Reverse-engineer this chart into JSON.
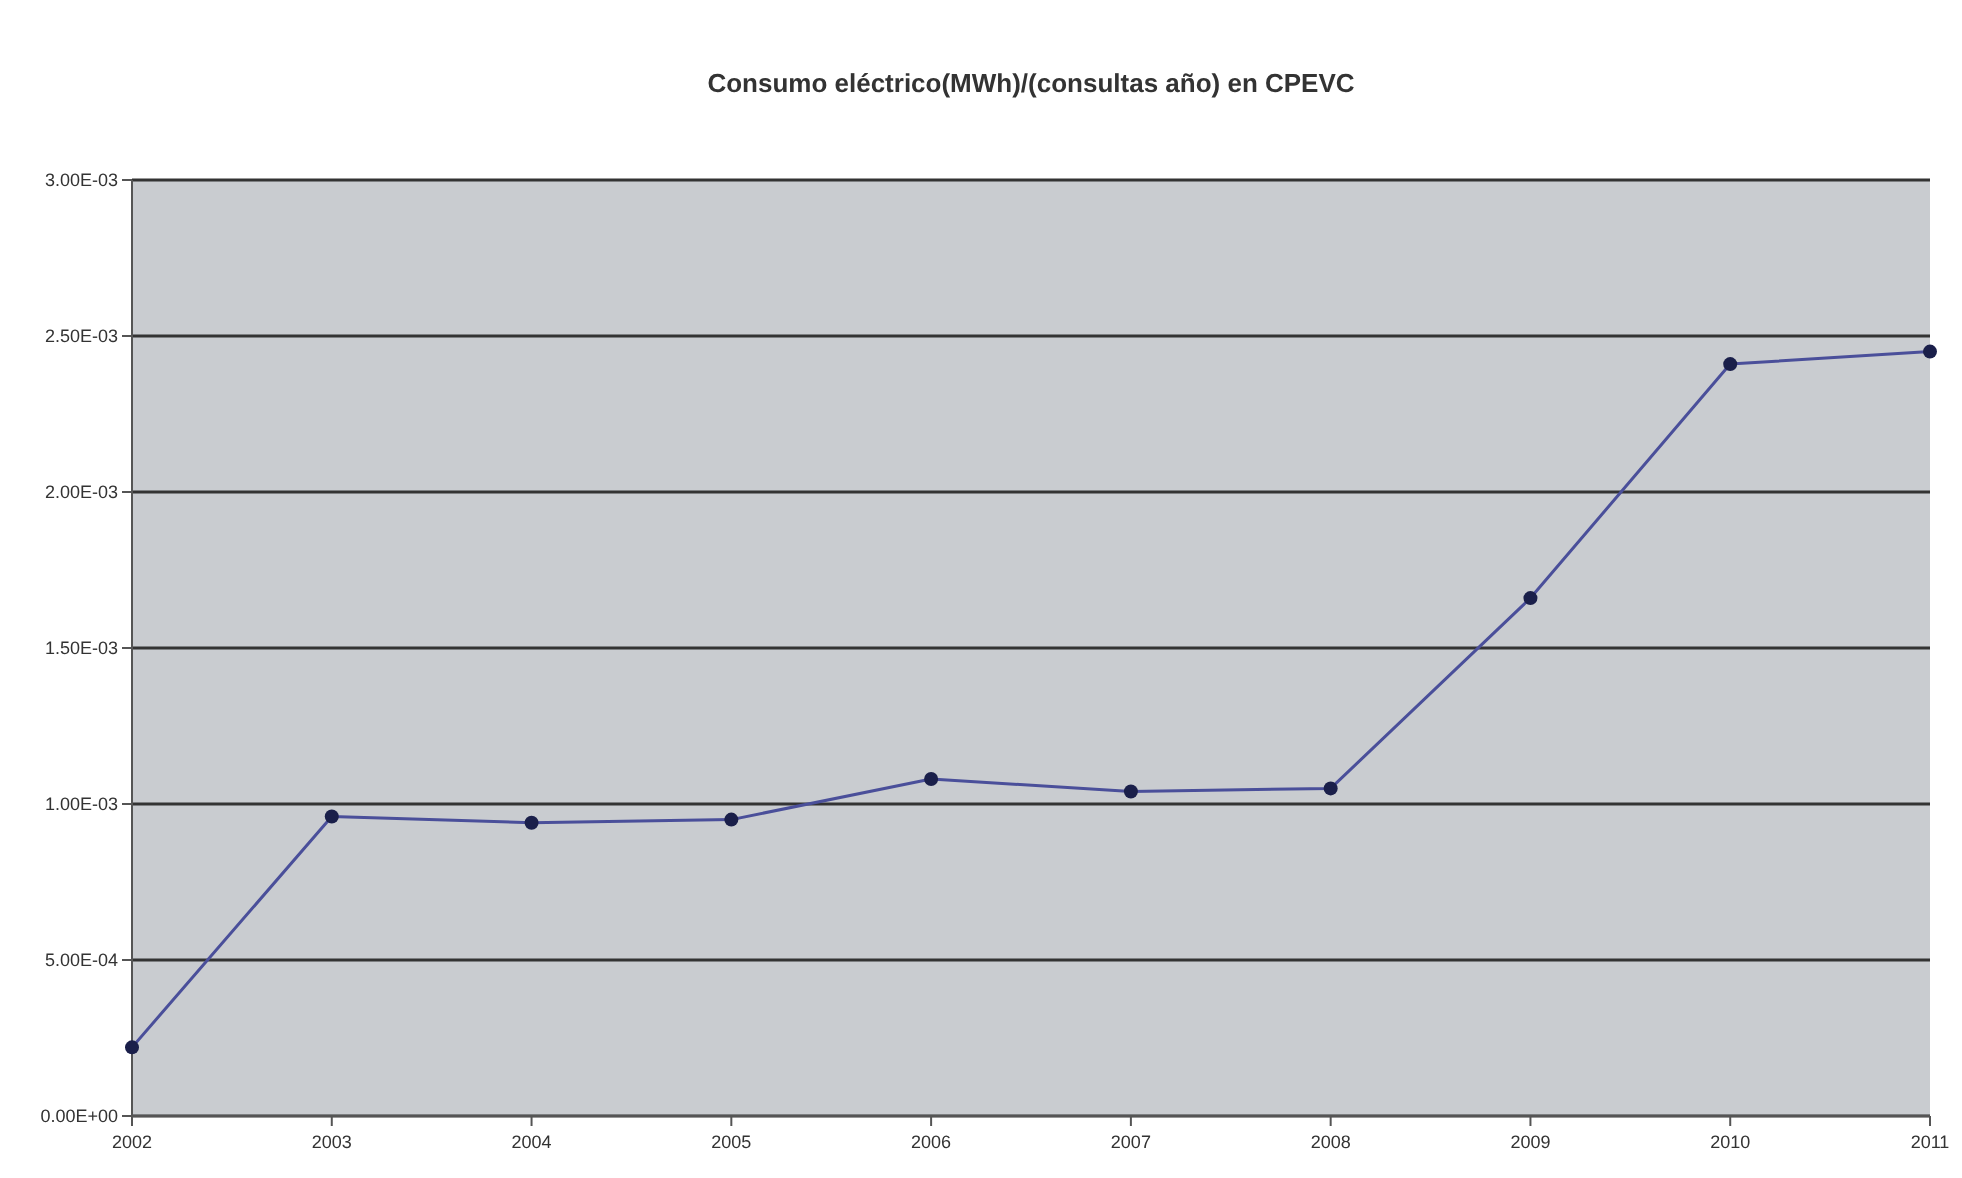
{
  "chart_data": {
    "type": "line",
    "title": "Consumo eléctrico(MWh)/(consultas año) en CPEVC",
    "categories": [
      "2002",
      "2003",
      "2004",
      "2005",
      "2006",
      "2007",
      "2008",
      "2009",
      "2010",
      "2011"
    ],
    "series": [
      {
        "color": "#4a4f9a",
        "values": [
          0.00022,
          0.00096,
          0.00094,
          0.00095,
          0.00108,
          0.00104,
          0.00105,
          0.00166,
          0.00241,
          0.00245
        ]
      }
    ],
    "ylim": [
      0,
      0.003
    ],
    "yticks": [
      {
        "value": 0,
        "label": "0.00E+00"
      },
      {
        "value": 0.0005,
        "label": "5.00E-04"
      },
      {
        "value": 0.001,
        "label": "1.00E-03"
      },
      {
        "value": 0.0015,
        "label": "1.50E-03"
      },
      {
        "value": 0.002,
        "label": "2.00E-03"
      },
      {
        "value": 0.0025,
        "label": "2.50E-03"
      },
      {
        "value": 0.003,
        "label": "3.00E-03"
      }
    ],
    "grid": "y",
    "marker": "circle",
    "line_style": "solid"
  }
}
